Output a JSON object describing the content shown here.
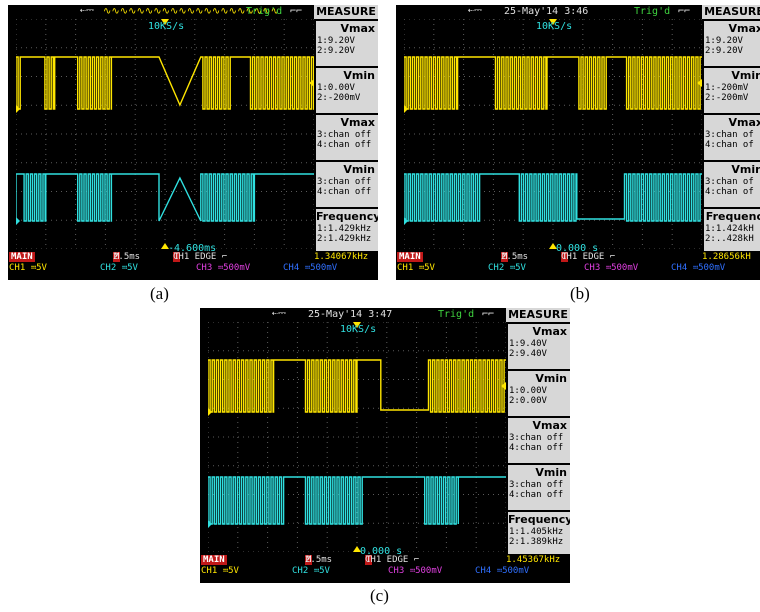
{
  "captions": [
    "(a)",
    "(b)",
    "(c)"
  ],
  "screens": [
    {
      "id": "a",
      "date": "",
      "time": "",
      "usb_icon": "usb-icon",
      "trig": "Trig'd",
      "sample_rate": "10KS/s",
      "panel_title": "MEASURE",
      "measures": [
        {
          "title": "Vmax",
          "lines": [
            "1:9.20V",
            "2:9.20V"
          ]
        },
        {
          "title": "Vmin",
          "lines": [
            "1:0.00V",
            "2:-200mV"
          ]
        },
        {
          "title": "Vmax",
          "lines": [
            "3:chan off",
            "4:chan off"
          ]
        },
        {
          "title": "Vmin",
          "lines": [
            "3:chan off",
            "4:chan off"
          ]
        },
        {
          "title": "Frequency",
          "lines": [
            "1:1.429kHz",
            "2:1.429kHz"
          ]
        }
      ],
      "cursor_time": "-4.600ms",
      "status": {
        "main": "MAIN",
        "timebase_m": "M",
        "timebase": "2.5ms",
        "trig_t": "T",
        "trig": "CH1 EDGE  ⌐",
        "freq": "1.34067kHz",
        "ch1": "CH1 ≕5V",
        "ch2": "CH2 ≕5V",
        "ch3": "CH3 ≕500mV",
        "ch4": "CH4 ≕500mV"
      }
    },
    {
      "id": "b",
      "date": "25-May'14",
      "time": "3:46",
      "usb_icon": "usb-icon",
      "trig": "Trig'd",
      "sample_rate": "10KS/s",
      "panel_title": "MEASURE",
      "measures": [
        {
          "title": "Vmax",
          "lines": [
            "1:9.20V",
            "2:9.20V"
          ]
        },
        {
          "title": "Vmin",
          "lines": [
            "1:-200mV",
            "2:-200mV"
          ]
        },
        {
          "title": "Vmax",
          "lines": [
            "3:chan of",
            "4:chan of"
          ]
        },
        {
          "title": "Vmin",
          "lines": [
            "3:chan of",
            "4:chan of"
          ]
        },
        {
          "title": "Frequenc",
          "lines": [
            "1:1.424kH",
            "2:..428kH"
          ]
        }
      ],
      "cursor_time": "0.000 s",
      "status": {
        "main": "MAIN",
        "timebase_m": "M",
        "timebase": "2.5ms",
        "trig_t": "T",
        "trig": "CH1 EDGE  ⌐",
        "freq": "1.28656kH",
        "ch1": "CH1 ≕5V",
        "ch2": "CH2 ≕5V",
        "ch3": "CH3 ≕500mV",
        "ch4": "CH4 ≕500mV"
      }
    },
    {
      "id": "c",
      "date": "25-May'14",
      "time": "3:47",
      "usb_icon": "usb-icon",
      "trig": "Trig'd",
      "sample_rate": "10KS/s",
      "panel_title": "MEASURE",
      "measures": [
        {
          "title": "Vmax",
          "lines": [
            "1:9.40V",
            "2:9.40V"
          ]
        },
        {
          "title": "Vmin",
          "lines": [
            "1:0.00V",
            "2:0.00V"
          ]
        },
        {
          "title": "Vmax",
          "lines": [
            "3:chan off",
            "4:chan off"
          ]
        },
        {
          "title": "Vmin",
          "lines": [
            "3:chan off",
            "4:chan off"
          ]
        },
        {
          "title": "Frequency",
          "lines": [
            "1:1.405kHz",
            "2:1.389kHz"
          ]
        }
      ],
      "cursor_time": "0.000 s",
      "status": {
        "main": "MAIN",
        "timebase_m": "M",
        "timebase": "2.5ms",
        "trig_t": "T",
        "trig": "CH1 EDGE  ⌐",
        "freq": "1.45367kHz",
        "ch1": "CH1 ≕5V",
        "ch2": "CH2 ≕5V",
        "ch3": "CH3 ≕500mV",
        "ch4": "CH4 ≕500mV"
      }
    }
  ],
  "colors": {
    "ch1": "#ffe600",
    "ch2": "#30e0e0",
    "grid": "#5a5a5a",
    "panel": "#d7d7d7",
    "main_badge": "#c01818"
  }
}
